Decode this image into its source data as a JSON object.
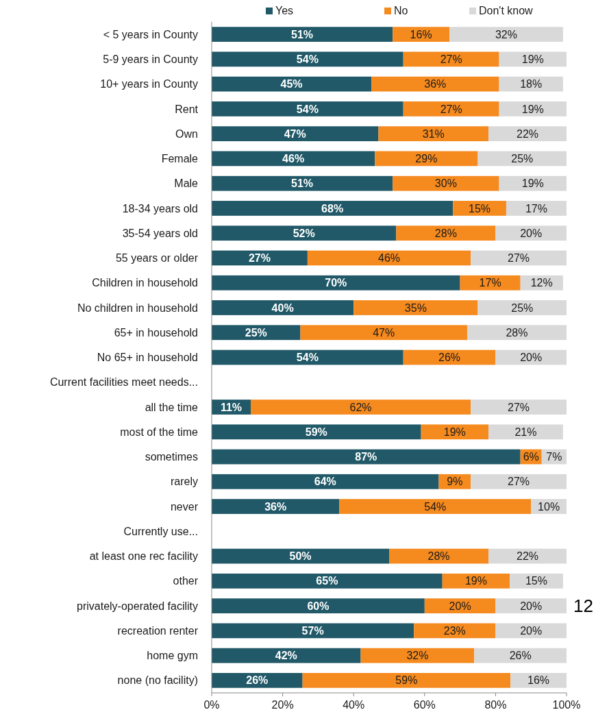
{
  "chart_data": {
    "type": "bar",
    "orientation": "horizontal",
    "stacked": true,
    "legend": "top",
    "grid": false,
    "categories": [
      "< 5 years in County",
      "5-9 years in County",
      "10+ years in County",
      "Rent",
      "Own",
      "Female",
      "Male",
      "18-34 years old",
      "35-54 years old",
      "55 years or older",
      "Children in household",
      "No children in household",
      "65+ in household",
      "No 65+ in household",
      "Current facilities meet needs...",
      "all the time",
      "most of the time",
      "sometimes",
      "rarely",
      "never",
      "Currently use...",
      "at least one rec facility",
      "other",
      "privately-operated facility",
      "recreation renter",
      "home gym",
      "none (no facility)"
    ],
    "series": [
      {
        "name": "Yes",
        "color": "#215968",
        "values": [
          51,
          54,
          45,
          54,
          47,
          46,
          51,
          68,
          52,
          27,
          70,
          40,
          25,
          54,
          null,
          11,
          59,
          87,
          64,
          36,
          null,
          50,
          65,
          60,
          57,
          42,
          25.6
        ],
        "value_labels": [
          "51%",
          "54%",
          "45%",
          "54%",
          "47%",
          "46%",
          "51%",
          "68%",
          "52%",
          "27%",
          "70%",
          "40%",
          "25%",
          "54%",
          null,
          "11%",
          "59%",
          "87%",
          "64%",
          "36%",
          null,
          "50%",
          "65%",
          "60%",
          "57%",
          "42%",
          "26%"
        ]
      },
      {
        "name": "No",
        "color": "#f58a1f",
        "values": [
          16,
          27,
          36,
          27,
          31,
          29,
          30,
          15,
          28,
          46,
          17,
          35,
          47,
          26,
          null,
          62,
          19,
          6,
          9,
          54,
          null,
          28,
          19,
          20,
          23,
          32,
          58.6
        ],
        "value_labels": [
          "16%",
          "27%",
          "36%",
          "27%",
          "31%",
          "29%",
          "30%",
          "15%",
          "28%",
          "46%",
          "17%",
          "35%",
          "47%",
          "26%",
          null,
          "62%",
          "19%",
          "6%",
          "9%",
          "54%",
          null,
          "28%",
          "19%",
          "20%",
          "23%",
          "32%",
          "59%"
        ]
      },
      {
        "name": "Don't know",
        "color": "#d9d9d9",
        "values": [
          32,
          19,
          18,
          19,
          22,
          25,
          19,
          17,
          20,
          27,
          12,
          25,
          28,
          20,
          null,
          27,
          21,
          7,
          27,
          10,
          null,
          22,
          15,
          20,
          20,
          26,
          15.8
        ],
        "value_labels": [
          "32%",
          "19%",
          "18%",
          "19%",
          "22%",
          "25%",
          "19%",
          "17%",
          "20%",
          "27%",
          "12%",
          "25%",
          "28%",
          "20%",
          null,
          "27%",
          "21%",
          "7%",
          "27%",
          "10%",
          null,
          "22%",
          "15%",
          "20%",
          "20%",
          "26%",
          "16%"
        ]
      }
    ],
    "xlim": [
      0,
      100
    ],
    "xticks": [
      {
        "value": 0,
        "label": "0%"
      },
      {
        "value": 20,
        "label": "20%"
      },
      {
        "value": 40,
        "label": "40%"
      },
      {
        "value": 60,
        "label": "60%"
      },
      {
        "value": 80,
        "label": "80%"
      },
      {
        "value": 100,
        "label": "100%"
      }
    ],
    "annotations": [
      "12"
    ]
  }
}
